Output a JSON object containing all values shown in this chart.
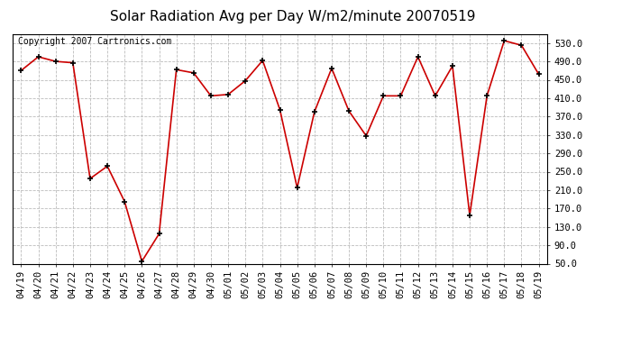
{
  "title": "Solar Radiation Avg per Day W/m2/minute 20070519",
  "copyright": "Copyright 2007 Cartronics.com",
  "dates": [
    "04/19",
    "04/20",
    "04/21",
    "04/22",
    "04/23",
    "04/24",
    "04/25",
    "04/26",
    "04/27",
    "04/28",
    "04/29",
    "04/30",
    "05/01",
    "05/02",
    "05/03",
    "05/04",
    "05/05",
    "05/06",
    "05/07",
    "05/08",
    "05/09",
    "05/10",
    "05/11",
    "05/12",
    "05/13",
    "05/14",
    "05/15",
    "05/16",
    "05/17",
    "05/18",
    "05/19"
  ],
  "values": [
    470,
    500,
    490,
    487,
    235,
    262,
    185,
    55,
    115,
    472,
    465,
    415,
    418,
    448,
    492,
    385,
    215,
    380,
    475,
    382,
    328,
    415,
    415,
    500,
    415,
    480,
    155,
    415,
    535,
    525,
    462
  ],
  "line_color": "#cc0000",
  "marker_color": "#000000",
  "background_color": "#ffffff",
  "plot_bg_color": "#ffffff",
  "grid_color": "#bbbbbb",
  "title_fontsize": 11,
  "copyright_fontsize": 7,
  "tick_fontsize": 7.5,
  "ylim": [
    50,
    550
  ],
  "yticks": [
    50.0,
    90.0,
    130.0,
    170.0,
    210.0,
    250.0,
    290.0,
    330.0,
    370.0,
    410.0,
    450.0,
    490.0,
    530.0
  ]
}
